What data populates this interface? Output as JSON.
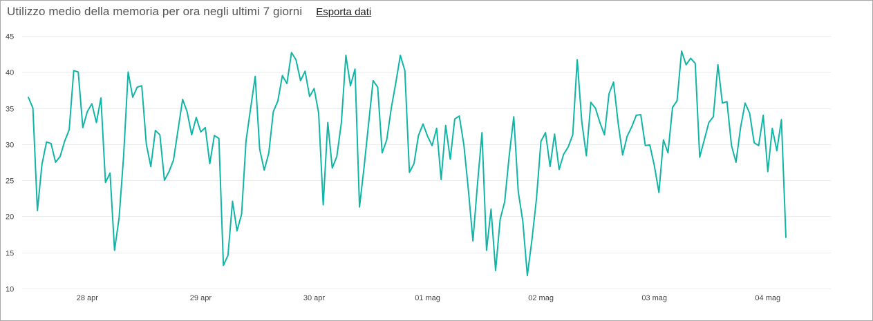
{
  "header": {
    "title": "Utilizzo medio della memoria per ora negli ultimi 7 giorni",
    "export_label": "Esporta dati"
  },
  "colors": {
    "series": "#10b5a6"
  },
  "chart_data": {
    "type": "line",
    "title": "Utilizzo medio della memoria per ora negli ultimi 7 giorni",
    "xlabel": "",
    "ylabel": "",
    "ylim": [
      10,
      45
    ],
    "y_ticks": [
      10,
      15,
      20,
      25,
      30,
      35,
      40,
      45
    ],
    "x_range": [
      -0.575,
      6.556
    ],
    "x_ticks": [
      {
        "pos": 0,
        "label": "28 apr"
      },
      {
        "pos": 1,
        "label": "29 apr"
      },
      {
        "pos": 2,
        "label": "30 apr"
      },
      {
        "pos": 3,
        "label": "01 mag"
      },
      {
        "pos": 4,
        "label": "02 mag"
      },
      {
        "pos": 5,
        "label": "03 mag"
      },
      {
        "pos": 6,
        "label": "04 mag"
      }
    ],
    "grid": true,
    "legend": "none",
    "series": [
      {
        "points": [
          [
            -0.52,
            36.5
          ],
          [
            -0.48,
            35.0
          ],
          [
            -0.44,
            20.8
          ],
          [
            -0.4,
            27.2
          ],
          [
            -0.36,
            30.3
          ],
          [
            -0.32,
            30.1
          ],
          [
            -0.28,
            27.5
          ],
          [
            -0.24,
            28.3
          ],
          [
            -0.2,
            30.4
          ],
          [
            -0.16,
            32.0
          ],
          [
            -0.12,
            40.2
          ],
          [
            -0.08,
            40.0
          ],
          [
            -0.04,
            32.3
          ],
          [
            0.0,
            34.5
          ],
          [
            0.04,
            35.6
          ],
          [
            0.08,
            33.0
          ],
          [
            0.12,
            36.4
          ],
          [
            0.16,
            24.7
          ],
          [
            0.2,
            26.0
          ],
          [
            0.24,
            15.3
          ],
          [
            0.28,
            19.8
          ],
          [
            0.32,
            28.3
          ],
          [
            0.36,
            40.0
          ],
          [
            0.4,
            36.5
          ],
          [
            0.44,
            37.9
          ],
          [
            0.48,
            38.1
          ],
          [
            0.52,
            30.0
          ],
          [
            0.56,
            26.9
          ],
          [
            0.6,
            31.9
          ],
          [
            0.64,
            31.3
          ],
          [
            0.68,
            25.0
          ],
          [
            0.72,
            26.2
          ],
          [
            0.76,
            27.8
          ],
          [
            0.8,
            32.0
          ],
          [
            0.84,
            36.2
          ],
          [
            0.88,
            34.5
          ],
          [
            0.92,
            31.3
          ],
          [
            0.96,
            33.7
          ],
          [
            1.0,
            31.7
          ],
          [
            1.04,
            32.3
          ],
          [
            1.08,
            27.3
          ],
          [
            1.12,
            31.2
          ],
          [
            1.16,
            30.8
          ],
          [
            1.2,
            13.2
          ],
          [
            1.24,
            14.6
          ],
          [
            1.28,
            22.1
          ],
          [
            1.32,
            18.0
          ],
          [
            1.36,
            20.3
          ],
          [
            1.4,
            30.5
          ],
          [
            1.44,
            35.0
          ],
          [
            1.48,
            39.4
          ],
          [
            1.52,
            29.3
          ],
          [
            1.56,
            26.4
          ],
          [
            1.6,
            28.8
          ],
          [
            1.64,
            34.5
          ],
          [
            1.68,
            36.0
          ],
          [
            1.72,
            39.5
          ],
          [
            1.76,
            38.4
          ],
          [
            1.8,
            42.7
          ],
          [
            1.84,
            41.7
          ],
          [
            1.88,
            38.8
          ],
          [
            1.92,
            40.1
          ],
          [
            1.96,
            36.6
          ],
          [
            2.0,
            37.7
          ],
          [
            2.04,
            34.3
          ],
          [
            2.08,
            21.6
          ],
          [
            2.12,
            33.0
          ],
          [
            2.16,
            26.7
          ],
          [
            2.2,
            28.3
          ],
          [
            2.24,
            33.0
          ],
          [
            2.28,
            42.3
          ],
          [
            2.32,
            38.1
          ],
          [
            2.36,
            40.4
          ],
          [
            2.4,
            21.3
          ],
          [
            2.44,
            26.8
          ],
          [
            2.48,
            32.8
          ],
          [
            2.52,
            38.8
          ],
          [
            2.56,
            37.9
          ],
          [
            2.6,
            28.8
          ],
          [
            2.64,
            30.6
          ],
          [
            2.68,
            35.0
          ],
          [
            2.72,
            38.5
          ],
          [
            2.76,
            42.3
          ],
          [
            2.8,
            40.2
          ],
          [
            2.84,
            26.1
          ],
          [
            2.88,
            27.3
          ],
          [
            2.92,
            31.2
          ],
          [
            2.96,
            32.8
          ],
          [
            3.0,
            31.1
          ],
          [
            3.04,
            29.8
          ],
          [
            3.08,
            32.2
          ],
          [
            3.12,
            25.1
          ],
          [
            3.16,
            32.6
          ],
          [
            3.2,
            27.9
          ],
          [
            3.24,
            33.5
          ],
          [
            3.28,
            33.9
          ],
          [
            3.32,
            29.9
          ],
          [
            3.36,
            23.7
          ],
          [
            3.4,
            16.6
          ],
          [
            3.44,
            24.5
          ],
          [
            3.48,
            31.6
          ],
          [
            3.52,
            15.3
          ],
          [
            3.56,
            21.0
          ],
          [
            3.6,
            12.5
          ],
          [
            3.64,
            19.6
          ],
          [
            3.68,
            22.0
          ],
          [
            3.72,
            28.4
          ],
          [
            3.76,
            33.8
          ],
          [
            3.8,
            23.4
          ],
          [
            3.84,
            19.3
          ],
          [
            3.88,
            11.8
          ],
          [
            3.92,
            16.7
          ],
          [
            3.96,
            22.4
          ],
          [
            4.0,
            30.4
          ],
          [
            4.04,
            31.6
          ],
          [
            4.08,
            26.9
          ],
          [
            4.12,
            31.4
          ],
          [
            4.16,
            26.5
          ],
          [
            4.2,
            28.6
          ],
          [
            4.24,
            29.6
          ],
          [
            4.28,
            31.3
          ],
          [
            4.32,
            41.7
          ],
          [
            4.36,
            33.1
          ],
          [
            4.4,
            28.4
          ],
          [
            4.44,
            35.8
          ],
          [
            4.48,
            35.0
          ],
          [
            4.52,
            33.0
          ],
          [
            4.56,
            31.3
          ],
          [
            4.6,
            37.0
          ],
          [
            4.64,
            38.6
          ],
          [
            4.68,
            33.0
          ],
          [
            4.72,
            28.5
          ],
          [
            4.76,
            31.1
          ],
          [
            4.8,
            32.4
          ],
          [
            4.84,
            34.0
          ],
          [
            4.88,
            34.1
          ],
          [
            4.92,
            29.8
          ],
          [
            4.96,
            29.9
          ],
          [
            5.0,
            27.0
          ],
          [
            5.04,
            23.3
          ],
          [
            5.08,
            30.6
          ],
          [
            5.12,
            28.8
          ],
          [
            5.16,
            35.1
          ],
          [
            5.2,
            36.0
          ],
          [
            5.24,
            42.9
          ],
          [
            5.28,
            41.0
          ],
          [
            5.32,
            41.9
          ],
          [
            5.36,
            41.2
          ],
          [
            5.4,
            28.2
          ],
          [
            5.44,
            30.6
          ],
          [
            5.48,
            33.0
          ],
          [
            5.52,
            33.8
          ],
          [
            5.56,
            41.0
          ],
          [
            5.6,
            35.7
          ],
          [
            5.64,
            35.9
          ],
          [
            5.68,
            29.8
          ],
          [
            5.72,
            27.5
          ],
          [
            5.76,
            32.3
          ],
          [
            5.8,
            35.7
          ],
          [
            5.84,
            34.3
          ],
          [
            5.88,
            30.2
          ],
          [
            5.92,
            29.8
          ],
          [
            5.96,
            34.0
          ],
          [
            6.0,
            26.2
          ],
          [
            6.04,
            32.2
          ],
          [
            6.08,
            29.1
          ],
          [
            6.12,
            33.4
          ],
          [
            6.16,
            17.1
          ]
        ]
      }
    ]
  }
}
